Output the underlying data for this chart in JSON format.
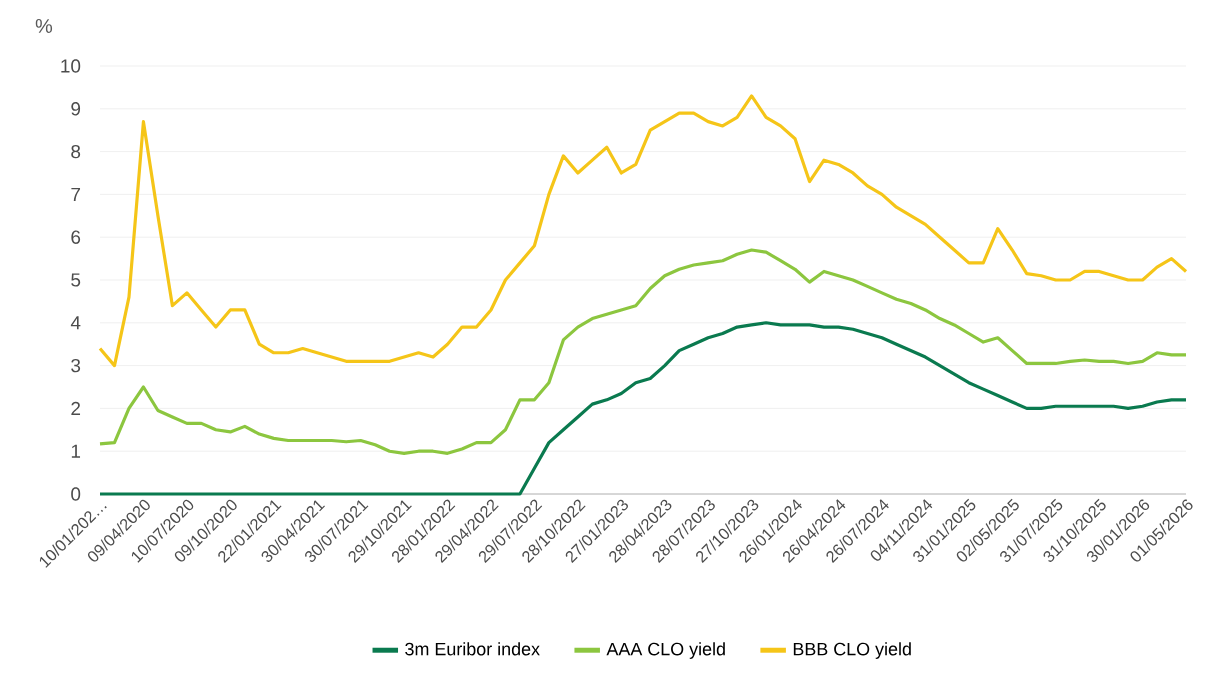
{
  "chart_data": {
    "type": "line",
    "ylabel": "%",
    "categories": [
      "10/01/202…",
      null,
      null,
      "09/04/2020",
      null,
      null,
      "10/07/2020",
      null,
      null,
      "09/10/2020",
      null,
      null,
      "22/01/2021",
      null,
      null,
      "30/04/2021",
      null,
      null,
      "30/07/2021",
      null,
      null,
      "29/10/2021",
      null,
      null,
      "28/01/2022",
      null,
      null,
      "29/04/2022",
      null,
      null,
      "29/07/2022",
      null,
      null,
      "28/10/2022",
      null,
      null,
      "27/01/2023",
      null,
      null,
      "28/04/2023",
      null,
      null,
      "28/07/2023",
      null,
      null,
      "27/10/2023",
      null,
      null,
      "26/01/2024",
      null,
      null,
      "26/04/2024",
      null,
      null,
      "26/07/2024",
      null,
      null,
      "04/11/2024",
      null,
      null,
      "31/01/2025",
      null,
      null,
      "02/05/2025",
      null,
      null,
      "31/07/2025",
      null,
      null,
      "31/10/2025",
      null,
      null,
      "30/01/2026",
      null,
      null,
      "01/05/2026"
    ],
    "series": [
      {
        "name": "3m Euribor index",
        "color": "#0a7a4f",
        "values": [
          0,
          0,
          0,
          0,
          0,
          0,
          0,
          0,
          0,
          0,
          0,
          0,
          0,
          0,
          0,
          0,
          0,
          0,
          0,
          0,
          0,
          0,
          0,
          0,
          0,
          0,
          0,
          0,
          0,
          0,
          0.6,
          1.2,
          1.5,
          1.8,
          2.1,
          2.2,
          2.35,
          2.6,
          2.7,
          3.0,
          3.35,
          3.5,
          3.65,
          3.75,
          3.9,
          3.95,
          4.0,
          3.95,
          3.95,
          3.95,
          3.9,
          3.9,
          3.85,
          3.75,
          3.65,
          3.5,
          3.35,
          3.2,
          3.0,
          2.8,
          2.6,
          2.45,
          2.3,
          2.15,
          2.0,
          2.0,
          2.05,
          2.05,
          2.05,
          2.05,
          2.05,
          2.0,
          2.05,
          2.15,
          2.2,
          2.2
        ]
      },
      {
        "name": "AAA CLO yield",
        "color": "#8cc63f",
        "values": [
          1.17,
          1.2,
          2.0,
          2.5,
          1.95,
          1.8,
          1.65,
          1.65,
          1.5,
          1.45,
          1.58,
          1.4,
          1.3,
          1.25,
          1.25,
          1.25,
          1.25,
          1.22,
          1.25,
          1.15,
          1.0,
          0.95,
          1.0,
          1.0,
          0.95,
          1.05,
          1.2,
          1.2,
          1.5,
          2.2,
          2.2,
          2.6,
          3.6,
          3.9,
          4.1,
          4.2,
          4.3,
          4.4,
          4.8,
          5.1,
          5.25,
          5.35,
          5.4,
          5.45,
          5.6,
          5.7,
          5.65,
          5.45,
          5.25,
          4.95,
          5.2,
          5.1,
          5.0,
          4.85,
          4.7,
          4.55,
          4.45,
          4.3,
          4.1,
          3.95,
          3.75,
          3.55,
          3.65,
          3.35,
          3.05,
          3.05,
          3.05,
          3.1,
          3.13,
          3.1,
          3.1,
          3.05,
          3.1,
          3.3,
          3.25,
          3.25
        ]
      },
      {
        "name": "BBB CLO yield",
        "color": "#f5c518",
        "values": [
          3.4,
          3.0,
          4.6,
          8.7,
          6.5,
          4.4,
          4.7,
          4.3,
          3.9,
          4.3,
          4.3,
          3.5,
          3.3,
          3.3,
          3.4,
          3.3,
          3.2,
          3.1,
          3.1,
          3.1,
          3.1,
          3.2,
          3.3,
          3.2,
          3.5,
          3.9,
          3.9,
          4.3,
          5.0,
          5.4,
          5.8,
          7.0,
          7.9,
          7.5,
          7.8,
          8.1,
          7.5,
          7.7,
          8.5,
          8.7,
          8.9,
          8.9,
          8.7,
          8.6,
          8.8,
          9.3,
          8.8,
          8.6,
          8.3,
          7.3,
          7.8,
          7.7,
          7.5,
          7.2,
          7.0,
          6.7,
          6.5,
          6.3,
          6.0,
          5.7,
          5.4,
          5.4,
          6.2,
          5.7,
          5.15,
          5.1,
          5.0,
          5.0,
          5.2,
          5.2,
          5.1,
          5.0,
          5.0,
          5.3,
          5.5,
          5.2
        ]
      }
    ],
    "ylim": [
      0,
      10
    ],
    "yticks": [
      0,
      1,
      2,
      3,
      4,
      5,
      6,
      7,
      8,
      9,
      10
    ],
    "grid": "y",
    "legend": "bottom",
    "marker": "none",
    "line_style": "solid"
  }
}
